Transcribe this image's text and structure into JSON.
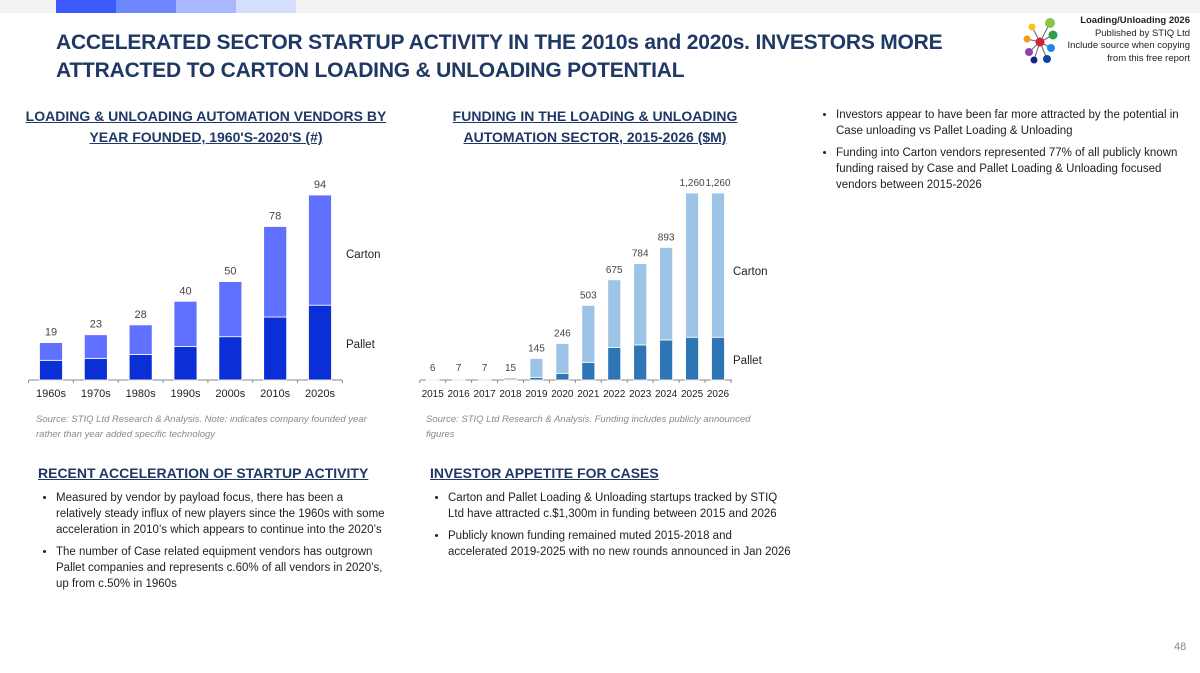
{
  "header": {
    "title": "ACCELERATED SECTOR STARTUP ACTIVITY IN THE 2010s and 2020s. INVESTORS MORE ATTRACTED TO CARTON LOADING & UNLOADING POTENTIAL",
    "stripe_colors": [
      "#3d5afe",
      "#6d87ff",
      "#a9b8ff",
      "#d6defd"
    ]
  },
  "logo": {
    "line1": "Loading/Unloading 2026",
    "line2": "Published by STIQ Ltd",
    "line3": "Include source when copying",
    "line4": "from this free report"
  },
  "chart_data": [
    {
      "type": "bar",
      "stacked": true,
      "title": "LOADING & UNLOADING AUTOMATION VENDORS BY YEAR FOUNDED, 1960'S-2020'S (#)",
      "categories": [
        "1960s",
        "1970s",
        "1980s",
        "1990s",
        "2000s",
        "2010s",
        "2020s"
      ],
      "totals": [
        "19",
        "23",
        "28",
        "40",
        "50",
        "78",
        "94"
      ],
      "series": [
        {
          "name": "Pallet",
          "values": [
            10,
            11,
            13,
            17,
            22,
            32,
            38
          ],
          "color": "#0a2fd6"
        },
        {
          "name": "Carton",
          "values": [
            9,
            12,
            15,
            23,
            28,
            46,
            56
          ],
          "color": "#6070ff"
        }
      ],
      "ylim": [
        0,
        94
      ],
      "grid": false,
      "source": "Source: STIQ Ltd Research & Analysis. Note: indicates company founded year rather than year added specific technology"
    },
    {
      "type": "bar",
      "stacked": true,
      "title": "FUNDING IN THE LOADING & UNLOADING AUTOMATION SECTOR, 2015-2026 ($M)",
      "categories": [
        "2015",
        "2016",
        "2017",
        "2018",
        "2019",
        "2020",
        "2021",
        "2022",
        "2023",
        "2024",
        "2025",
        "2026"
      ],
      "totals": [
        "6",
        "7",
        "7",
        "15",
        "145",
        "246",
        "503",
        "675",
        "784",
        "893",
        "1,260",
        "1,260"
      ],
      "series": [
        {
          "name": "Pallet",
          "values": [
            0,
            0,
            0,
            0,
            18,
            45,
            119,
            220,
            236,
            270,
            288,
            288
          ],
          "color": "#2e75b6"
        },
        {
          "name": "Carton",
          "values": [
            6,
            7,
            7,
            15,
            127,
            201,
            384,
            455,
            548,
            623,
            972,
            972
          ],
          "color": "#9dc3e6"
        }
      ],
      "ylim": [
        0,
        1260
      ],
      "grid": false,
      "source": "Source: STIQ Ltd Research & Analysis. Funding includes publicly announced figures"
    }
  ],
  "right_bullets": [
    "Investors appear to have been far more attracted by the potential in Case unloading vs Pallet Loading & Unloading",
    "Funding into Carton vendors represented 77% of all publicly known funding raised by Case and Pallet Loading & Unloading focused vendors between 2015-2026"
  ],
  "section1": {
    "heading": "RECENT ACCELERATION OF STARTUP ACTIVITY",
    "bullets": [
      "Measured by vendor by payload focus, there has been a relatively steady influx of new players since the 1960s with some acceleration in 2010’s which appears to continue into the 2020’s",
      "The number of Case related equipment vendors has outgrown Pallet companies and represents c.60% of all vendors in 2020’s, up from c.50% in 1960s"
    ]
  },
  "section2": {
    "heading": "INVESTOR APPETITE FOR CASES",
    "bullets": [
      "Carton and Pallet Loading & Unloading startups tracked by STIQ Ltd have attracted c.$1,300m in funding between 2015 and 2026",
      "Publicly known funding remained muted 2015-2018 and accelerated 2019-2025 with no new rounds announced in Jan 2026"
    ]
  },
  "page_number": "48"
}
